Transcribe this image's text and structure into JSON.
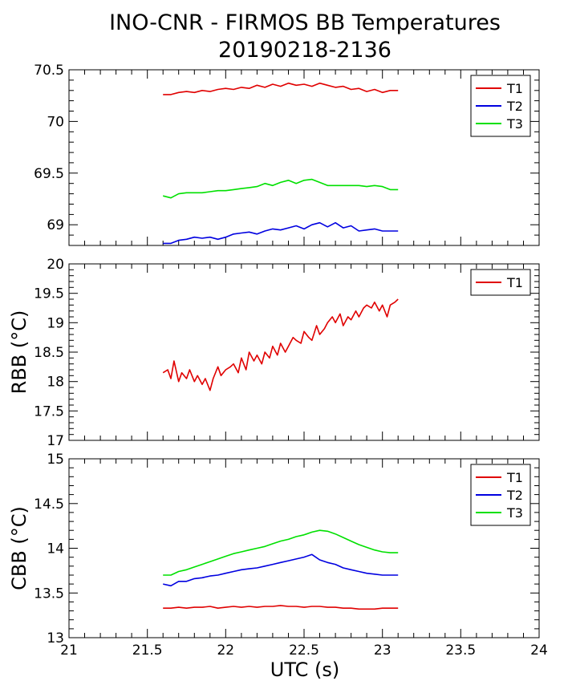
{
  "title_line1": "INO-CNR - FIRMOS BB Temperatures",
  "title_line2": "20190218-2136",
  "xlabel": "UTC (s)",
  "chart_data": [
    {
      "type": "line",
      "panel": "top",
      "ylabel": "",
      "xlim": [
        21,
        24
      ],
      "ylim": [
        68.8,
        70.5
      ],
      "yticks": [
        "70.5",
        "70",
        "69.5",
        "69"
      ],
      "ytick_values": [
        70.5,
        70,
        69.5,
        69
      ],
      "legend_placement": "top-right",
      "series": [
        {
          "name": "T1",
          "color": "#e00000",
          "x": [
            21.6,
            21.65,
            21.7,
            21.75,
            21.8,
            21.85,
            21.9,
            21.95,
            22.0,
            22.05,
            22.1,
            22.15,
            22.2,
            22.25,
            22.3,
            22.35,
            22.4,
            22.45,
            22.5,
            22.55,
            22.6,
            22.65,
            22.7,
            22.75,
            22.8,
            22.85,
            22.9,
            22.95,
            23.0,
            23.05,
            23.1
          ],
          "y": [
            70.26,
            70.26,
            70.28,
            70.29,
            70.28,
            70.3,
            70.29,
            70.31,
            70.32,
            70.31,
            70.33,
            70.32,
            70.35,
            70.33,
            70.36,
            70.34,
            70.37,
            70.35,
            70.36,
            70.34,
            70.37,
            70.35,
            70.33,
            70.34,
            70.31,
            70.32,
            70.29,
            70.31,
            70.28,
            70.3,
            70.3
          ]
        },
        {
          "name": "T2",
          "color": "#0000e0",
          "x": [
            21.6,
            21.65,
            21.7,
            21.75,
            21.8,
            21.85,
            21.9,
            21.95,
            22.0,
            22.05,
            22.1,
            22.15,
            22.2,
            22.25,
            22.3,
            22.35,
            22.4,
            22.45,
            22.5,
            22.55,
            22.6,
            22.65,
            22.7,
            22.75,
            22.8,
            22.85,
            22.9,
            22.95,
            23.0,
            23.05,
            23.1
          ],
          "y": [
            68.82,
            68.82,
            68.85,
            68.86,
            68.88,
            68.87,
            68.88,
            68.86,
            68.88,
            68.91,
            68.92,
            68.93,
            68.91,
            68.94,
            68.96,
            68.95,
            68.97,
            68.99,
            68.96,
            69.0,
            69.02,
            68.98,
            69.02,
            68.97,
            68.99,
            68.94,
            68.95,
            68.96,
            68.94,
            68.94,
            68.94
          ]
        },
        {
          "name": "T3",
          "color": "#00e000",
          "x": [
            21.6,
            21.65,
            21.7,
            21.75,
            21.8,
            21.85,
            21.9,
            21.95,
            22.0,
            22.05,
            22.1,
            22.15,
            22.2,
            22.25,
            22.3,
            22.35,
            22.4,
            22.45,
            22.5,
            22.55,
            22.6,
            22.65,
            22.7,
            22.75,
            22.8,
            22.85,
            22.9,
            22.95,
            23.0,
            23.05,
            23.1
          ],
          "y": [
            69.28,
            69.26,
            69.3,
            69.31,
            69.31,
            69.31,
            69.32,
            69.33,
            69.33,
            69.34,
            69.35,
            69.36,
            69.37,
            69.4,
            69.38,
            69.41,
            69.43,
            69.4,
            69.43,
            69.44,
            69.41,
            69.38,
            69.38,
            69.38,
            69.38,
            69.38,
            69.37,
            69.38,
            69.37,
            69.34,
            69.34
          ]
        }
      ]
    },
    {
      "type": "line",
      "panel": "middle",
      "ylabel": "RBB (°C)",
      "xlim": [
        21,
        24
      ],
      "ylim": [
        17,
        20
      ],
      "yticks": [
        "20",
        "19.5",
        "19",
        "18.5",
        "18",
        "17.5",
        "17"
      ],
      "ytick_values": [
        20,
        19.5,
        19,
        18.5,
        18,
        17.5,
        17
      ],
      "legend_placement": "top-right",
      "series": [
        {
          "name": "T1",
          "color": "#e00000",
          "x": [
            21.6,
            21.63,
            21.65,
            21.67,
            21.7,
            21.72,
            21.75,
            21.77,
            21.8,
            21.82,
            21.85,
            21.87,
            21.9,
            21.92,
            21.95,
            21.97,
            22.0,
            22.03,
            22.05,
            22.08,
            22.1,
            22.13,
            22.15,
            22.18,
            22.2,
            22.23,
            22.25,
            22.28,
            22.3,
            22.33,
            22.35,
            22.38,
            22.4,
            22.43,
            22.45,
            22.48,
            22.5,
            22.53,
            22.55,
            22.58,
            22.6,
            22.63,
            22.65,
            22.68,
            22.7,
            22.73,
            22.75,
            22.78,
            22.8,
            22.83,
            22.85,
            22.88,
            22.9,
            22.93,
            22.95,
            22.98,
            23.0,
            23.03,
            23.05,
            23.08,
            23.1
          ],
          "y": [
            18.15,
            18.2,
            18.05,
            18.35,
            18.0,
            18.15,
            18.05,
            18.2,
            18.0,
            18.1,
            17.95,
            18.05,
            17.85,
            18.05,
            18.25,
            18.1,
            18.2,
            18.25,
            18.3,
            18.15,
            18.4,
            18.2,
            18.5,
            18.35,
            18.45,
            18.3,
            18.5,
            18.4,
            18.6,
            18.45,
            18.65,
            18.5,
            18.6,
            18.75,
            18.7,
            18.65,
            18.85,
            18.75,
            18.7,
            18.95,
            18.8,
            18.9,
            19.0,
            19.1,
            19.0,
            19.15,
            18.95,
            19.1,
            19.05,
            19.2,
            19.1,
            19.25,
            19.3,
            19.25,
            19.35,
            19.2,
            19.3,
            19.1,
            19.3,
            19.35,
            19.4
          ]
        }
      ]
    },
    {
      "type": "line",
      "panel": "bottom",
      "ylabel": "CBB (°C)",
      "xlim": [
        21,
        24
      ],
      "ylim": [
        13,
        15
      ],
      "yticks": [
        "15",
        "14.5",
        "14",
        "13.5",
        "13"
      ],
      "ytick_values": [
        15,
        14.5,
        14,
        13.5,
        13
      ],
      "xticks": [
        "21",
        "21.5",
        "22",
        "22.5",
        "23",
        "23.5",
        "24"
      ],
      "xtick_values": [
        21,
        21.5,
        22,
        22.5,
        23,
        23.5,
        24
      ],
      "legend_placement": "top-right",
      "series": [
        {
          "name": "T1",
          "color": "#e00000",
          "x": [
            21.6,
            21.65,
            21.7,
            21.75,
            21.8,
            21.85,
            21.9,
            21.95,
            22.0,
            22.05,
            22.1,
            22.15,
            22.2,
            22.25,
            22.3,
            22.35,
            22.4,
            22.45,
            22.5,
            22.55,
            22.6,
            22.65,
            22.7,
            22.75,
            22.8,
            22.85,
            22.9,
            22.95,
            23.0,
            23.05,
            23.1
          ],
          "y": [
            13.33,
            13.33,
            13.34,
            13.33,
            13.34,
            13.34,
            13.35,
            13.33,
            13.34,
            13.35,
            13.34,
            13.35,
            13.34,
            13.35,
            13.35,
            13.36,
            13.35,
            13.35,
            13.34,
            13.35,
            13.35,
            13.34,
            13.34,
            13.33,
            13.33,
            13.32,
            13.32,
            13.32,
            13.33,
            13.33,
            13.33
          ]
        },
        {
          "name": "T2",
          "color": "#0000e0",
          "x": [
            21.6,
            21.65,
            21.7,
            21.75,
            21.8,
            21.85,
            21.9,
            21.95,
            22.0,
            22.05,
            22.1,
            22.15,
            22.2,
            22.25,
            22.3,
            22.35,
            22.4,
            22.45,
            22.5,
            22.55,
            22.6,
            22.65,
            22.7,
            22.75,
            22.8,
            22.85,
            22.9,
            22.95,
            23.0,
            23.05,
            23.1
          ],
          "y": [
            13.6,
            13.58,
            13.63,
            13.63,
            13.66,
            13.67,
            13.69,
            13.7,
            13.72,
            13.74,
            13.76,
            13.77,
            13.78,
            13.8,
            13.82,
            13.84,
            13.86,
            13.88,
            13.9,
            13.93,
            13.87,
            13.84,
            13.82,
            13.78,
            13.76,
            13.74,
            13.72,
            13.71,
            13.7,
            13.7,
            13.7
          ]
        },
        {
          "name": "T3",
          "color": "#00e000",
          "x": [
            21.6,
            21.65,
            21.7,
            21.75,
            21.8,
            21.85,
            21.9,
            21.95,
            22.0,
            22.05,
            22.1,
            22.15,
            22.2,
            22.25,
            22.3,
            22.35,
            22.4,
            22.45,
            22.5,
            22.55,
            22.6,
            22.65,
            22.7,
            22.75,
            22.8,
            22.85,
            22.9,
            22.95,
            23.0,
            23.05,
            23.1
          ],
          "y": [
            13.7,
            13.7,
            13.74,
            13.76,
            13.79,
            13.82,
            13.85,
            13.88,
            13.91,
            13.94,
            13.96,
            13.98,
            14.0,
            14.02,
            14.05,
            14.08,
            14.1,
            14.13,
            14.15,
            14.18,
            14.2,
            14.19,
            14.16,
            14.12,
            14.08,
            14.04,
            14.01,
            13.98,
            13.96,
            13.95,
            13.95
          ]
        }
      ]
    }
  ]
}
